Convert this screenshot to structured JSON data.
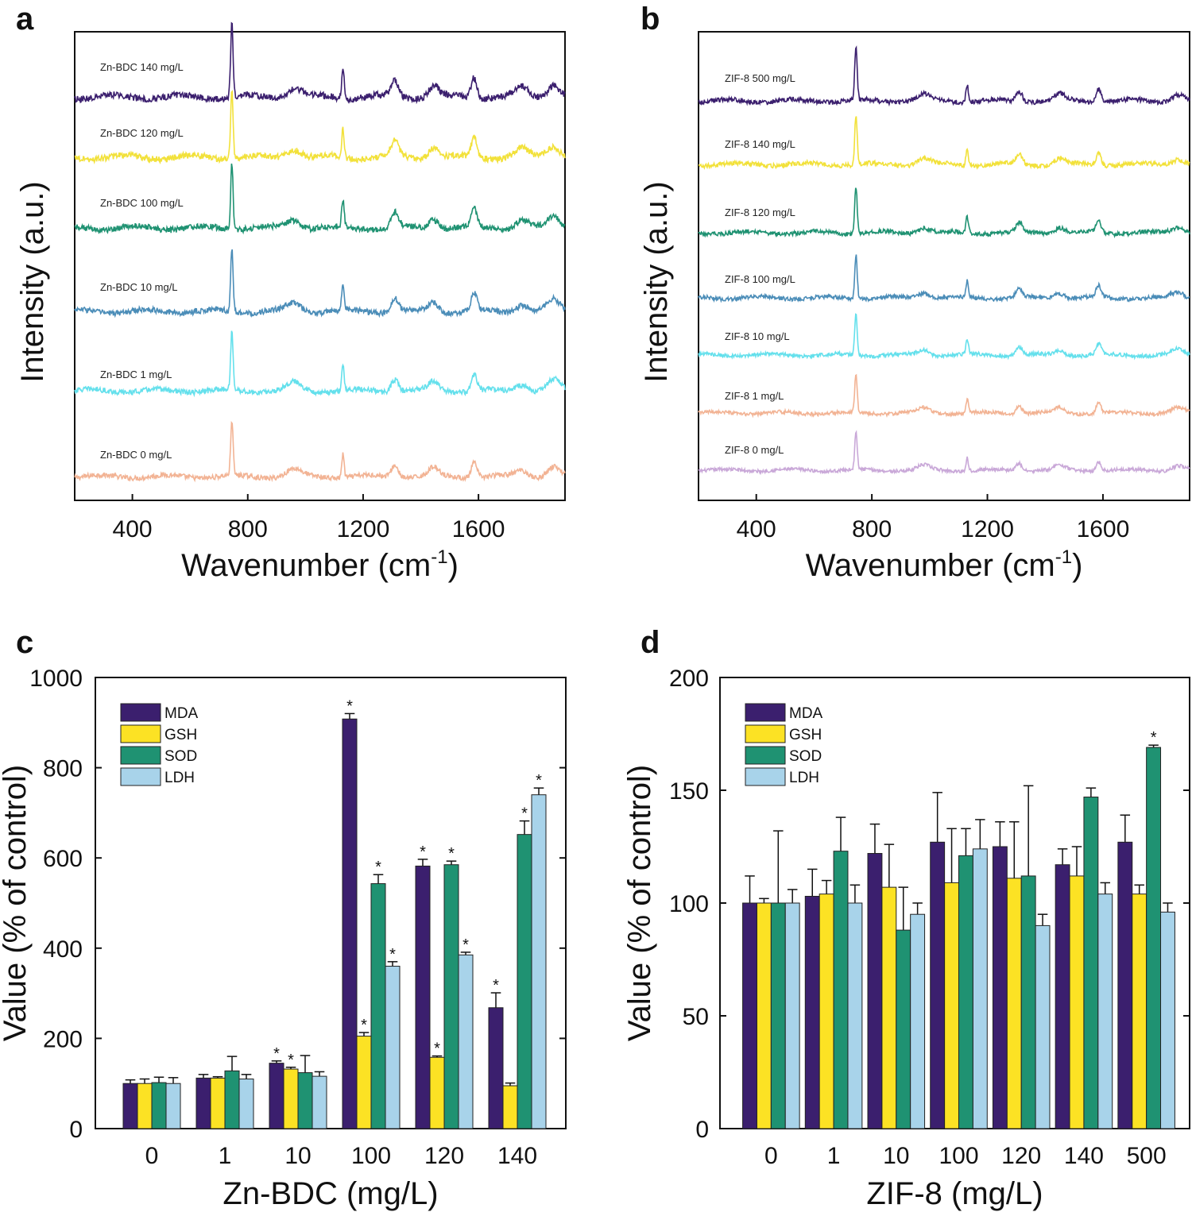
{
  "panel_letters": {
    "a": "a",
    "b": "b",
    "c": "c",
    "d": "d"
  },
  "colors": {
    "mda": "#3b1f6e",
    "gsh": "#fce224",
    "sod": "#1f9272",
    "ldh": "#a8d3ea",
    "spec_0": "#f2b394",
    "spec_1": "#64e0ec",
    "spec_10": "#4b8db8",
    "spec_100": "#1f9272",
    "spec_120": "#f2e13a",
    "spec_140": "#3b1f6e",
    "spec_zif_0": "#c9a8d8"
  },
  "chart_data": [
    {
      "id": "a",
      "type": "line",
      "xlabel": "Wavenumber (cm",
      "xlabel_sup": "-1",
      "xlabel_close": ")",
      "ylabel": "Intensity (a.u.)",
      "xlim": [
        200,
        1900
      ],
      "xticks": [
        400,
        800,
        1200,
        1600
      ],
      "grid": false,
      "peaks": [
        {
          "center": 745,
          "height": 1.0,
          "width": 6
        },
        {
          "center": 960,
          "height": 0.13,
          "width": 35
        },
        {
          "center": 1130,
          "height": 0.42,
          "width": 6
        },
        {
          "center": 1310,
          "height": 0.22,
          "width": 18
        },
        {
          "center": 1445,
          "height": 0.15,
          "width": 25
        },
        {
          "center": 1585,
          "height": 0.28,
          "width": 14
        },
        {
          "center": 1750,
          "height": 0.12,
          "width": 30
        },
        {
          "center": 1860,
          "height": 0.18,
          "width": 30
        }
      ],
      "series": [
        {
          "name": "Zn-BDC 0 mg/L",
          "color_key": "spec_0"
        },
        {
          "name": "Zn-BDC 1 mg/L",
          "color_key": "spec_1"
        },
        {
          "name": "Zn-BDC 10 mg/L",
          "color_key": "spec_10"
        },
        {
          "name": "Zn-BDC 100 mg/L",
          "color_key": "spec_100"
        },
        {
          "name": "Zn-BDC 120 mg/L",
          "color_key": "spec_120"
        },
        {
          "name": "Zn-BDC 140 mg/L",
          "color_key": "spec_140"
        }
      ]
    },
    {
      "id": "b",
      "type": "line",
      "xlabel": "Wavenumber (cm",
      "xlabel_sup": "-1",
      "xlabel_close": ")",
      "ylabel": "Intensity (a.u.)",
      "xlim": [
        200,
        1900
      ],
      "xticks": [
        400,
        800,
        1200,
        1600
      ],
      "grid": false,
      "peaks": [
        {
          "center": 745,
          "height": 1.0,
          "width": 6
        },
        {
          "center": 980,
          "height": 0.12,
          "width": 30
        },
        {
          "center": 1130,
          "height": 0.35,
          "width": 6
        },
        {
          "center": 1310,
          "height": 0.2,
          "width": 15
        },
        {
          "center": 1450,
          "height": 0.12,
          "width": 25
        },
        {
          "center": 1585,
          "height": 0.25,
          "width": 12
        },
        {
          "center": 1860,
          "height": 0.12,
          "width": 30
        }
      ],
      "series": [
        {
          "name": "ZIF-8 0 mg/L",
          "color_key": "spec_zif_0"
        },
        {
          "name": "ZIF-8 1 mg/L",
          "color_key": "spec_0"
        },
        {
          "name": "ZIF-8 10 mg/L",
          "color_key": "spec_1"
        },
        {
          "name": "ZIF-8 100 mg/L",
          "color_key": "spec_10"
        },
        {
          "name": "ZIF-8 120 mg/L",
          "color_key": "spec_100"
        },
        {
          "name": "ZIF-8 140 mg/L",
          "color_key": "spec_120"
        },
        {
          "name": "ZIF-8 500 mg/L",
          "color_key": "spec_140"
        }
      ]
    },
    {
      "id": "c",
      "type": "bar",
      "xlabel": "Zn-BDC (mg/L)",
      "ylabel": "Value (% of control)",
      "ylim": [
        0,
        1000
      ],
      "yticks": [
        0,
        200,
        400,
        600,
        800,
        1000
      ],
      "categories": [
        "0",
        "1",
        "10",
        "100",
        "120",
        "140"
      ],
      "legend_position": "top-left",
      "series": [
        {
          "name": "MDA",
          "color_key": "mda",
          "values": [
            100,
            112,
            145,
            908,
            582,
            268
          ],
          "errors": [
            8,
            8,
            5,
            12,
            15,
            33
          ],
          "significant": [
            false,
            false,
            true,
            true,
            true,
            true
          ]
        },
        {
          "name": "GSH",
          "color_key": "gsh",
          "values": [
            100,
            112,
            132,
            205,
            158,
            95
          ],
          "errors": [
            10,
            3,
            4,
            8,
            3,
            6
          ],
          "significant": [
            false,
            false,
            true,
            true,
            true,
            false
          ]
        },
        {
          "name": "SOD",
          "color_key": "sod",
          "values": [
            102,
            128,
            124,
            543,
            585,
            652
          ],
          "errors": [
            12,
            32,
            38,
            20,
            8,
            30
          ],
          "significant": [
            false,
            false,
            false,
            true,
            true,
            true
          ]
        },
        {
          "name": "LDH",
          "color_key": "ldh",
          "values": [
            100,
            110,
            116,
            360,
            385,
            740
          ],
          "errors": [
            13,
            10,
            10,
            10,
            6,
            15
          ],
          "significant": [
            false,
            false,
            false,
            true,
            true,
            true
          ]
        }
      ]
    },
    {
      "id": "d",
      "type": "bar",
      "xlabel": "ZIF-8 (mg/L)",
      "ylabel": "Value (% of control)",
      "ylim": [
        0,
        200
      ],
      "yticks": [
        0,
        50,
        100,
        150,
        200
      ],
      "categories": [
        "0",
        "1",
        "10",
        "100",
        "120",
        "140",
        "500"
      ],
      "legend_position": "top-left",
      "series": [
        {
          "name": "MDA",
          "color_key": "mda",
          "values": [
            100,
            103,
            122,
            127,
            125,
            117,
            127
          ],
          "errors": [
            12,
            12,
            13,
            22,
            11,
            7,
            12
          ],
          "significant": [
            false,
            false,
            false,
            false,
            false,
            false,
            false
          ]
        },
        {
          "name": "GSH",
          "color_key": "gsh",
          "values": [
            100,
            104,
            107,
            109,
            111,
            112,
            104
          ],
          "errors": [
            2,
            6,
            19,
            24,
            25,
            13,
            4
          ],
          "significant": [
            false,
            false,
            false,
            false,
            false,
            false,
            false
          ]
        },
        {
          "name": "SOD",
          "color_key": "sod",
          "values": [
            100,
            123,
            88,
            121,
            112,
            147,
            169
          ],
          "errors": [
            32,
            15,
            19,
            12,
            40,
            4,
            1
          ],
          "significant": [
            false,
            false,
            false,
            false,
            false,
            false,
            true
          ]
        },
        {
          "name": "LDH",
          "color_key": "ldh",
          "values": [
            100,
            100,
            95,
            124,
            90,
            104,
            96
          ],
          "errors": [
            6,
            8,
            5,
            13,
            5,
            5,
            4
          ],
          "significant": [
            false,
            false,
            false,
            false,
            false,
            false,
            false
          ]
        }
      ]
    }
  ]
}
